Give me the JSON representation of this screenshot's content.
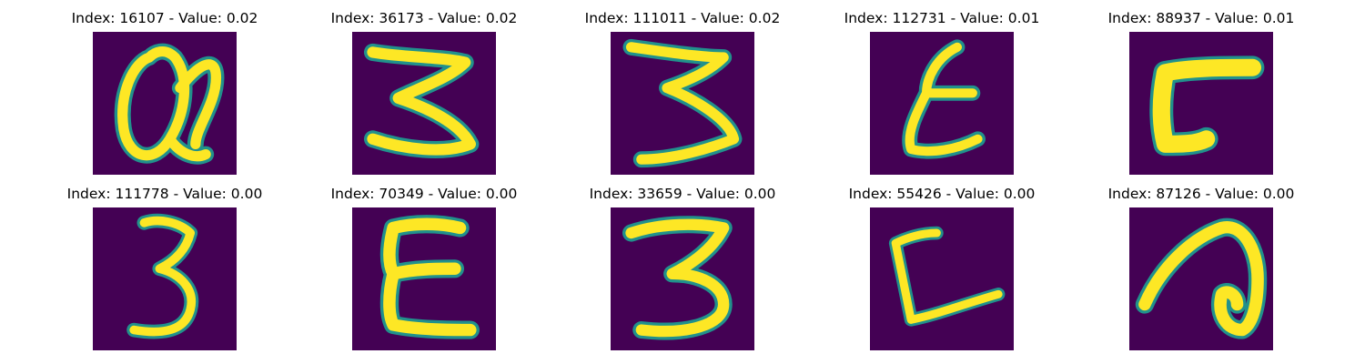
{
  "figure": {
    "background": "#ffffff",
    "colormap": {
      "name": "viridis",
      "background_color": "#440154",
      "mid_color": "#21918c",
      "stroke_color": "#fde725"
    },
    "panels": [
      {
        "title": "Index: 16107 - Value: 0.02",
        "glyph": "handwritten-a-like"
      },
      {
        "title": "Index: 36173 - Value: 0.02",
        "glyph": "handwritten-3"
      },
      {
        "title": "Index: 111011 - Value: 0.02",
        "glyph": "handwritten-3"
      },
      {
        "title": "Index: 112731 - Value: 0.01",
        "glyph": "handwritten-epsilon"
      },
      {
        "title": "Index: 88937 - Value: 0.01",
        "glyph": "handwritten-square-bracket"
      },
      {
        "title": "Index: 111778 - Value: 0.00",
        "glyph": "handwritten-3"
      },
      {
        "title": "Index: 70349 - Value: 0.00",
        "glyph": "handwritten-E"
      },
      {
        "title": "Index: 33659 - Value: 0.00",
        "glyph": "handwritten-3"
      },
      {
        "title": "Index: 55426 - Value: 0.00",
        "glyph": "handwritten-L"
      },
      {
        "title": "Index: 87126 - Value: 0.00",
        "glyph": "handwritten-a-like"
      }
    ]
  }
}
